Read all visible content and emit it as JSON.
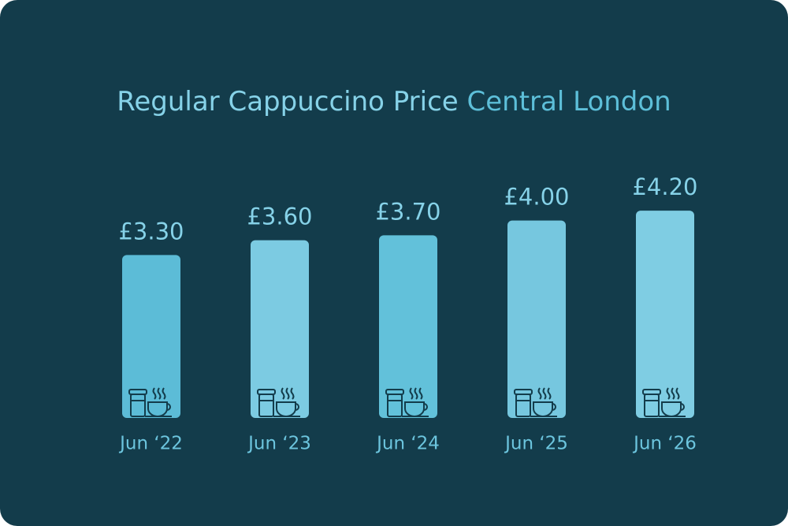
{
  "chart_data": {
    "type": "bar",
    "title": "Regular Cappuccino Price",
    "title_highlight": "Central London",
    "categories": [
      "Jun ‘22",
      "Jun ‘23",
      "Jun ‘24",
      "Jun ‘25",
      "Jun ‘26"
    ],
    "values": [
      3.3,
      3.6,
      3.7,
      4.0,
      4.2
    ],
    "value_labels": [
      "£3.30",
      "£3.60",
      "£3.70",
      "£4.00",
      "£4.20"
    ],
    "colors": [
      "#5cbcd7",
      "#7ccbe2",
      "#62c1da",
      "#76c7df",
      "#7fcde3"
    ]
  }
}
